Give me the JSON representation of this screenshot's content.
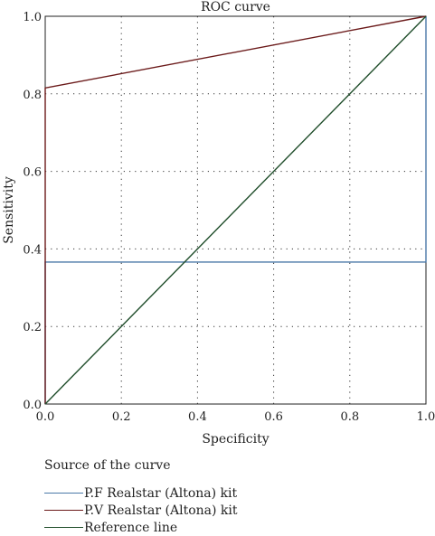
{
  "chart_data": {
    "type": "line",
    "title": "ROC curve",
    "xlabel": "Specificity",
    "ylabel": "Sensitivity",
    "xlim": [
      0,
      1
    ],
    "ylim": [
      0,
      1
    ],
    "x_ticks": [
      "0.0",
      "0.2",
      "0.4",
      "0.6",
      "0.8",
      "1.0"
    ],
    "y_ticks": [
      "0.0",
      "0.2",
      "0.4",
      "0.6",
      "0.8",
      "1.0"
    ],
    "grid": "dotted",
    "legend_title": "Source of the curve",
    "legend_position": "bottom-left",
    "series": [
      {
        "name": "P.F Realstar (Altona) kit",
        "color": "#4a78a8",
        "x": [
          0,
          0,
          1,
          1
        ],
        "y": [
          0,
          0.366,
          0.366,
          1
        ]
      },
      {
        "name": "P.V Realstar (Altona) kit",
        "color": "#6b1a1a",
        "x": [
          0,
          0,
          1
        ],
        "y": [
          0,
          0.815,
          1
        ]
      },
      {
        "name": "Reference line",
        "color": "#1f4d2a",
        "x": [
          0,
          1
        ],
        "y": [
          0,
          1
        ]
      }
    ]
  }
}
